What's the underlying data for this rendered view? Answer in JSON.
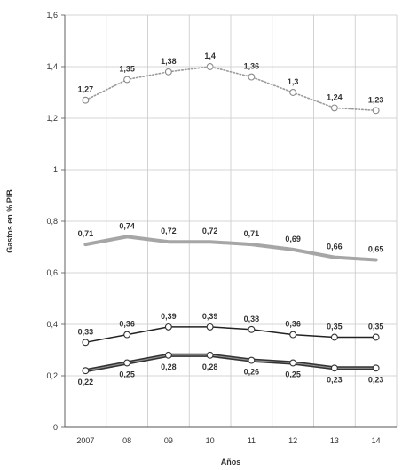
{
  "chart_data": {
    "type": "line",
    "title": "",
    "xlabel": "Años",
    "ylabel": "Gastos en % PIB",
    "categories": [
      "2007",
      "08",
      "09",
      "10",
      "11",
      "12",
      "13",
      "14"
    ],
    "ylim": [
      0,
      1.6
    ],
    "yticks": [
      0,
      0.2,
      0.4,
      0.6,
      0.8,
      1,
      1.2,
      1.4,
      1.6
    ],
    "ytick_labels": [
      "0",
      "0,2",
      "0,4",
      "0,6",
      "0,8",
      "1",
      "1,2",
      "1,4",
      "1,6"
    ],
    "grid": true,
    "legend": "none",
    "series": [
      {
        "values": [
          1.27,
          1.35,
          1.38,
          1.4,
          1.36,
          1.3,
          1.24,
          1.23
        ],
        "labels": [
          "1,27",
          "1,35",
          "1,38",
          "1,4",
          "1,36",
          "1,3",
          "1,24",
          "1,23"
        ],
        "style": "dotted",
        "color": "#9a9a9a",
        "markers": true,
        "label_position": "above"
      },
      {
        "values": [
          0.71,
          0.74,
          0.72,
          0.72,
          0.71,
          0.69,
          0.66,
          0.65
        ],
        "labels": [
          "0,71",
          "0,74",
          "0,72",
          "0,72",
          "0,71",
          "0,69",
          "0,66",
          "0,65"
        ],
        "style": "thick",
        "color": "#a6a6a6",
        "markers": false,
        "label_position": "above"
      },
      {
        "values": [
          0.33,
          0.36,
          0.39,
          0.39,
          0.38,
          0.36,
          0.35,
          0.35
        ],
        "labels": [
          "0,33",
          "0,36",
          "0,39",
          "0,39",
          "0,38",
          "0,36",
          "0,35",
          "0,35"
        ],
        "style": "solid",
        "color": "#222222",
        "markers": true,
        "label_position": "above"
      },
      {
        "values": [
          0.22,
          0.25,
          0.28,
          0.28,
          0.26,
          0.25,
          0.23,
          0.23
        ],
        "labels": [
          "0,22",
          "0,25",
          "0,28",
          "0,28",
          "0,26",
          "0,25",
          "0,23",
          "0,23"
        ],
        "style": "double",
        "color": "#333333",
        "markers": true,
        "label_position": "below"
      }
    ]
  }
}
